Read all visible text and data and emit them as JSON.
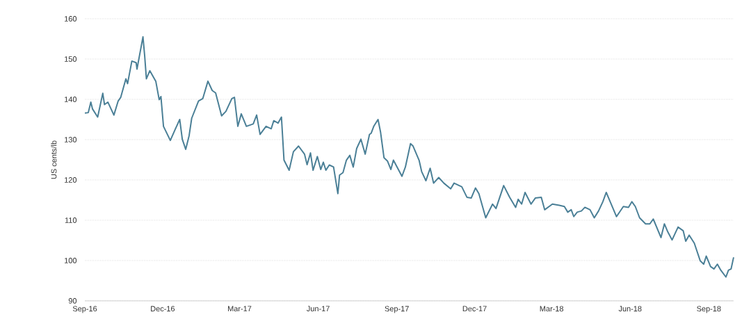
{
  "chart_data": {
    "type": "line",
    "ylabel": "US cents/lb",
    "color": "#4a7f96",
    "grid": "y",
    "xlim": [
      "2016-09-01",
      "2018-09-30"
    ],
    "ylim": [
      90,
      160
    ],
    "yticks": [
      90,
      100,
      110,
      120,
      130,
      140,
      150,
      160
    ],
    "xticks": [
      {
        "value": "2016-09-01",
        "label": "Sep-16"
      },
      {
        "value": "2016-12-01",
        "label": "Dec-16"
      },
      {
        "value": "2017-03-01",
        "label": "Mar-17"
      },
      {
        "value": "2017-06-01",
        "label": "Jun-17"
      },
      {
        "value": "2017-09-01",
        "label": "Sep-17"
      },
      {
        "value": "2017-12-01",
        "label": "Dec-17"
      },
      {
        "value": "2018-03-01",
        "label": "Mar-18"
      },
      {
        "value": "2018-06-01",
        "label": "Jun-18"
      },
      {
        "value": "2018-09-01",
        "label": "Sep-18"
      }
    ],
    "x": [
      "2016-09-01",
      "2016-09-05",
      "2016-09-08",
      "2016-09-10",
      "2016-09-16",
      "2016-09-22",
      "2016-09-24",
      "2016-09-28",
      "2016-10-05",
      "2016-10-10",
      "2016-10-13",
      "2016-10-19",
      "2016-10-21",
      "2016-10-26",
      "2016-10-31",
      "2016-11-01",
      "2016-11-08",
      "2016-11-10",
      "2016-11-12",
      "2016-11-16",
      "2016-11-23",
      "2016-11-27",
      "2016-11-29",
      "2016-12-02",
      "2016-12-10",
      "2016-12-16",
      "2016-12-21",
      "2016-12-24",
      "2016-12-28",
      "2017-01-01",
      "2017-01-04",
      "2017-01-12",
      "2017-01-17",
      "2017-01-23",
      "2017-01-28",
      "2017-02-01",
      "2017-02-08",
      "2017-02-13",
      "2017-02-20",
      "2017-02-23",
      "2017-02-27",
      "2017-03-03",
      "2017-03-09",
      "2017-03-17",
      "2017-03-21",
      "2017-03-25",
      "2017-04-01",
      "2017-04-07",
      "2017-04-10",
      "2017-04-15",
      "2017-04-19",
      "2017-04-22",
      "2017-04-28",
      "2017-05-03",
      "2017-05-09",
      "2017-05-16",
      "2017-05-19",
      "2017-05-23",
      "2017-05-26",
      "2017-05-31",
      "2017-06-04",
      "2017-06-07",
      "2017-06-10",
      "2017-06-14",
      "2017-06-19",
      "2017-06-24",
      "2017-06-26",
      "2017-06-30",
      "2017-07-04",
      "2017-07-08",
      "2017-07-12",
      "2017-07-16",
      "2017-07-21",
      "2017-07-26",
      "2017-07-31",
      "2017-08-02",
      "2017-08-05",
      "2017-08-10",
      "2017-08-13",
      "2017-08-17",
      "2017-08-21",
      "2017-08-25",
      "2017-08-28",
      "2017-09-07",
      "2017-09-11",
      "2017-09-17",
      "2017-09-20",
      "2017-09-27",
      "2017-09-30",
      "2017-10-05",
      "2017-10-10",
      "2017-10-14",
      "2017-10-20",
      "2017-10-26",
      "2017-11-03",
      "2017-11-07",
      "2017-11-16",
      "2017-11-22",
      "2017-11-27",
      "2017-12-02",
      "2017-12-06",
      "2017-12-14",
      "2017-12-22",
      "2017-12-26",
      "2018-01-04",
      "2018-01-11",
      "2018-01-18",
      "2018-01-21",
      "2018-01-25",
      "2018-01-29",
      "2018-02-05",
      "2018-02-10",
      "2018-02-17",
      "2018-02-21",
      "2018-03-02",
      "2018-03-10",
      "2018-03-16",
      "2018-03-20",
      "2018-03-24",
      "2018-03-27",
      "2018-03-31",
      "2018-04-05",
      "2018-04-09",
      "2018-04-15",
      "2018-04-20",
      "2018-04-25",
      "2018-04-30",
      "2018-05-04",
      "2018-05-08",
      "2018-05-16",
      "2018-05-24",
      "2018-05-30",
      "2018-06-03",
      "2018-06-07",
      "2018-06-12",
      "2018-06-19",
      "2018-06-24",
      "2018-06-28",
      "2018-07-07",
      "2018-07-11",
      "2018-07-15",
      "2018-07-20",
      "2018-07-27",
      "2018-08-02",
      "2018-08-05",
      "2018-08-09",
      "2018-08-15",
      "2018-08-22",
      "2018-08-26",
      "2018-08-29",
      "2018-09-03",
      "2018-09-07",
      "2018-09-11",
      "2018-09-15",
      "2018-09-21",
      "2018-09-24",
      "2018-09-27",
      "2018-09-30"
    ],
    "values": [
      136.6,
      136.7,
      139.3,
      137.6,
      135.6,
      141.5,
      138.7,
      139.3,
      136.1,
      139.6,
      140.5,
      145.1,
      143.9,
      149.5,
      149.1,
      147.5,
      155.5,
      150.8,
      145.1,
      147.1,
      144.5,
      139.9,
      140.7,
      133.3,
      129.8,
      132.7,
      135.0,
      130.1,
      127.6,
      131.0,
      135.3,
      139.6,
      140.2,
      144.5,
      142.2,
      141.6,
      135.9,
      137.0,
      140.2,
      140.5,
      133.3,
      136.4,
      133.3,
      133.9,
      136.1,
      131.3,
      133.3,
      132.7,
      134.7,
      134.1,
      135.6,
      124.9,
      122.4,
      127.0,
      128.4,
      126.4,
      123.8,
      126.7,
      122.4,
      125.8,
      122.6,
      124.4,
      122.4,
      123.7,
      123.2,
      116.6,
      121.2,
      121.8,
      124.9,
      126.1,
      123.2,
      127.8,
      130.1,
      126.4,
      131.3,
      131.6,
      133.3,
      135.0,
      131.8,
      125.5,
      124.7,
      122.6,
      124.9,
      120.9,
      123.2,
      129.0,
      128.4,
      124.9,
      122.1,
      119.8,
      122.9,
      119.2,
      120.6,
      119.2,
      117.8,
      119.2,
      118.3,
      115.7,
      115.5,
      118.0,
      116.6,
      110.6,
      114.0,
      112.9,
      118.6,
      115.7,
      113.2,
      115.2,
      114.0,
      116.9,
      114.0,
      115.5,
      115.7,
      112.6,
      114.0,
      113.7,
      113.4,
      112.0,
      112.6,
      110.9,
      112.0,
      112.3,
      113.2,
      112.6,
      110.6,
      112.3,
      114.6,
      116.9,
      114.9,
      110.9,
      113.4,
      113.2,
      114.6,
      113.4,
      110.6,
      109.1,
      109.1,
      110.3,
      105.7,
      109.1,
      107.1,
      105.1,
      108.3,
      107.4,
      104.8,
      106.3,
      104.3,
      99.9,
      99.1,
      101.1,
      98.5,
      97.9,
      99.1,
      97.6,
      95.9,
      97.6,
      97.9,
      100.8
    ]
  }
}
